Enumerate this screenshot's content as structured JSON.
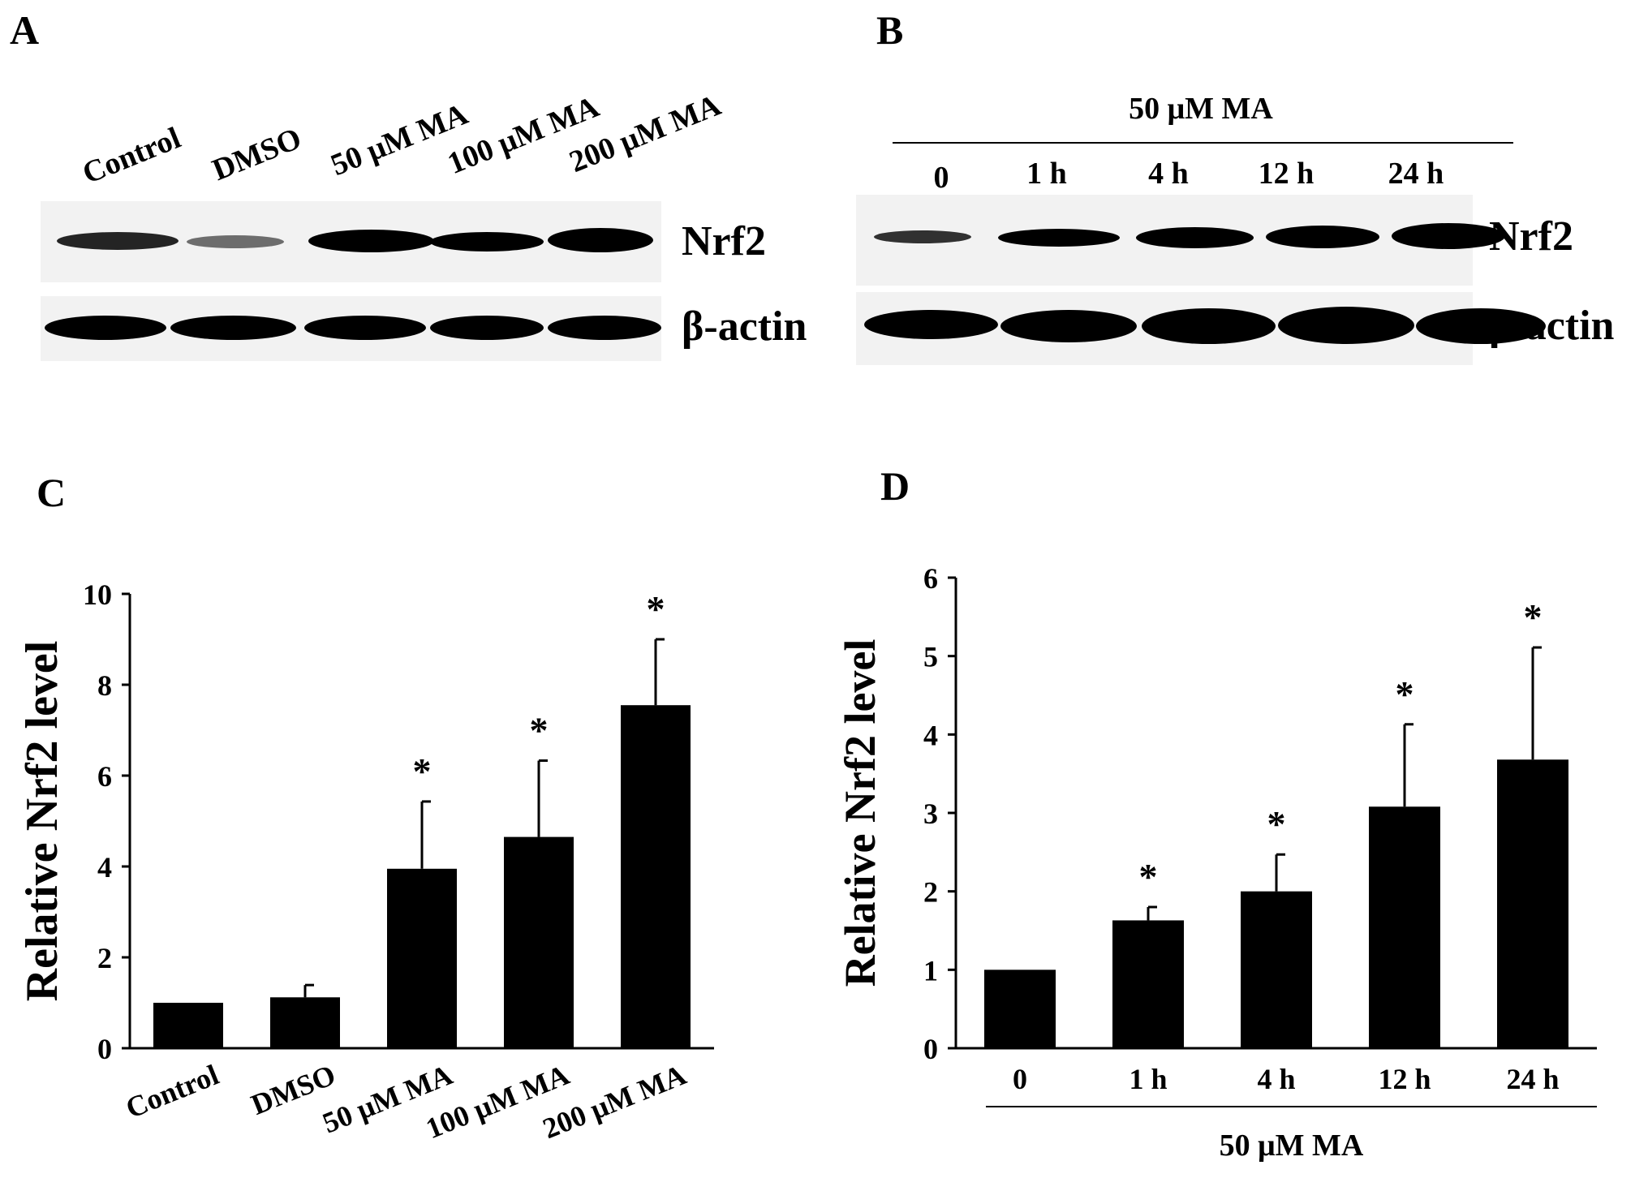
{
  "panels": {
    "a": {
      "letter": "A",
      "lanes": [
        "Control",
        "DMSO",
        "50 μM MA",
        "100 μM MA",
        "200 μM MA"
      ],
      "nrf2_label": "Nrf2",
      "actin_label": "β-actin"
    },
    "b": {
      "letter": "B",
      "treatment": "50 μM MA",
      "lanes": [
        "0",
        "1 h",
        "4 h",
        "12 h",
        "24 h"
      ],
      "nrf2_label": "Nrf2",
      "actin_label": "β-actin"
    },
    "c": {
      "letter": "C"
    },
    "d": {
      "letter": "D"
    }
  },
  "chart_data": [
    {
      "panel": "C",
      "type": "bar",
      "categories": [
        "Control",
        "DMSO",
        "50 μM MA",
        "100 μM MA",
        "200 μM MA"
      ],
      "values": [
        1.0,
        1.12,
        3.95,
        4.65,
        7.55
      ],
      "errors": [
        0,
        0.27,
        1.48,
        1.68,
        1.45
      ],
      "significance": [
        "",
        "",
        "*",
        "*",
        "*"
      ],
      "ylabel": "Relative Nrf2 level",
      "xlabel": "",
      "ylim": [
        0,
        10
      ],
      "yticks": [
        0,
        2,
        4,
        6,
        8,
        10
      ],
      "bar_color": "#000000"
    },
    {
      "panel": "D",
      "type": "bar",
      "categories": [
        "0",
        "1 h",
        "4 h",
        "12 h",
        "24 h"
      ],
      "values": [
        1.0,
        1.63,
        2.0,
        3.08,
        3.68
      ],
      "errors": [
        0,
        0.17,
        0.47,
        1.05,
        1.43
      ],
      "significance": [
        "",
        "*",
        "*",
        "*",
        "*"
      ],
      "ylabel": "Relative  Nrf2 level",
      "xlabel": "50 μM MA",
      "ylim": [
        0,
        6
      ],
      "yticks": [
        0,
        1,
        2,
        3,
        4,
        5,
        6
      ],
      "bar_color": "#000000"
    }
  ]
}
